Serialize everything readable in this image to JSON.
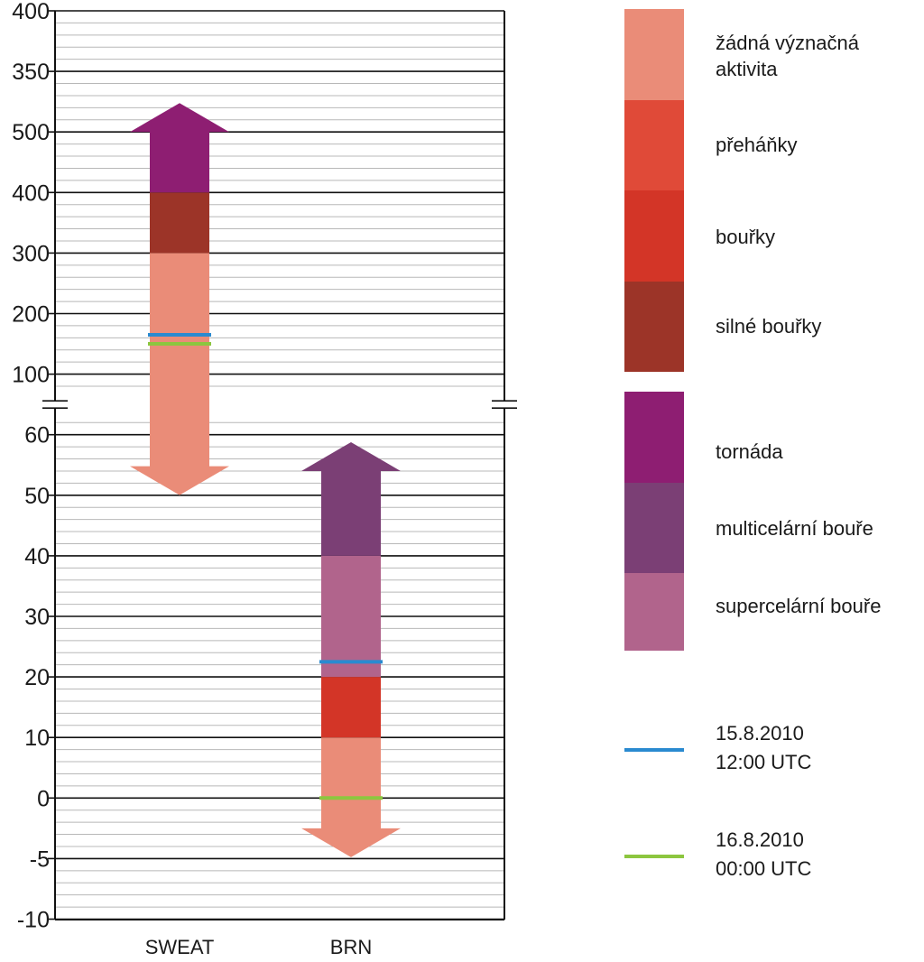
{
  "chart_data": {
    "type": "bar",
    "title": "",
    "xlabel": "",
    "ylabel": "",
    "categories": [
      "SWEAT",
      "BRN"
    ],
    "axis": {
      "upper_segment": {
        "ticks": [
          100,
          200,
          300,
          400,
          500,
          350,
          400
        ]
      },
      "lower_segment": {
        "ticks": [
          -10,
          -5,
          0,
          10,
          20,
          30,
          40,
          50,
          60
        ]
      },
      "tick_labels_top_to_bottom": [
        "400",
        "350",
        "500",
        "400",
        "300",
        "200",
        "100",
        "60",
        "50",
        "40",
        "30",
        "20",
        "10",
        "0",
        "-5",
        "-10"
      ],
      "axis_break": true,
      "minor_grid": true
    },
    "series": [
      {
        "category": "SWEAT",
        "ranges": [
          {
            "from": "below",
            "to": 300,
            "class": "žádná význačná aktivita",
            "arrow": "down"
          },
          {
            "from": 300,
            "to": 400,
            "class": "silné bouřky"
          },
          {
            "from": 400,
            "to": "above",
            "class": "tornáda",
            "arrow": "up"
          }
        ],
        "markers": [
          {
            "date": "15.8.2010 12:00 UTC",
            "value": 165
          },
          {
            "date": "16.8.2010 00:00 UTC",
            "value": 150
          }
        ]
      },
      {
        "category": "BRN",
        "ranges": [
          {
            "from": "below",
            "to": 10,
            "class": "žádná význačná aktivita",
            "arrow": "down"
          },
          {
            "from": 10,
            "to": 20,
            "class": "bouřky"
          },
          {
            "from": 20,
            "to": 40,
            "class": "supercelární bouře"
          },
          {
            "from": 40,
            "to": "above",
            "class": "multicelární bouře",
            "arrow": "up"
          }
        ],
        "markers": [
          {
            "date": "15.8.2010 12:00 UTC",
            "value": 22.5
          },
          {
            "date": "16.8.2010 00:00 UTC",
            "value": 0
          }
        ]
      }
    ],
    "legend": {
      "placement": "right",
      "classes": [
        {
          "label": "žádná význačná aktivita",
          "color": "#ea8c78"
        },
        {
          "label": "přeháňky",
          "color": "#e04a38"
        },
        {
          "label": "bouřky",
          "color": "#d33527"
        },
        {
          "label": "silné bouřky",
          "color": "#9c3428"
        },
        {
          "label": "tornáda",
          "color": "#8e1e72"
        },
        {
          "label": "multicelární bouře",
          "color": "#7b3f75"
        },
        {
          "label": "supercelární bouře",
          "color": "#b1648c"
        }
      ],
      "markers": [
        {
          "label_line1": "15.8.2010",
          "label_line2": "12:00 UTC",
          "color": "#2a8ad0"
        },
        {
          "label_line1": "16.8.2010",
          "label_line2": "00:00 UTC",
          "color": "#8cc63f"
        }
      ]
    }
  }
}
